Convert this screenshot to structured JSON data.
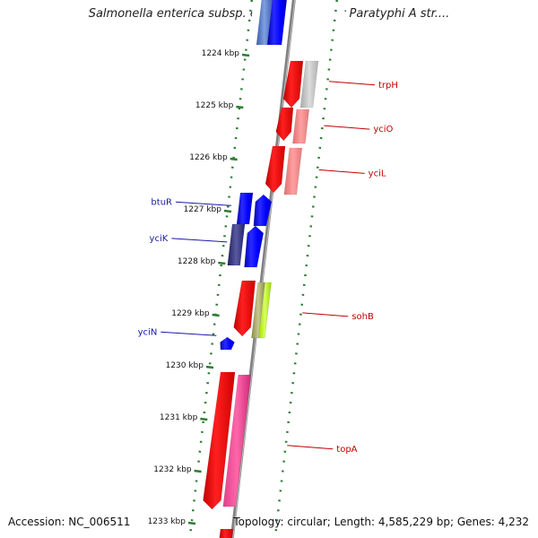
{
  "title": "Salmonella enterica subsp. enterica serovar Paratyphi A str....",
  "accession": "Accession: NC_006511",
  "topology": "Topology: circular; Length: 4,585,229 bp; Genes: 4,232",
  "colors": {
    "forward_gene": "#0000ff",
    "reverse_gene": "#ff0000",
    "backbone": "#808080",
    "tick": "#2e7d32",
    "forward_label": "#1a1aa6",
    "reverse_label": "#c00000"
  },
  "ruler": {
    "ticks": [
      "1224 kbp",
      "1225 kbp",
      "1226 kbp",
      "1227 kbp",
      "1228 kbp",
      "1229 kbp",
      "1230 kbp",
      "1231 kbp",
      "1232 kbp",
      "1233 kbp"
    ]
  },
  "forward_labels": [
    {
      "name": "btuR",
      "kbp": 1226.85
    },
    {
      "name": "yciK",
      "kbp": 1227.55
    },
    {
      "name": "yciN",
      "kbp": 1229.35
    }
  ],
  "reverse_labels": [
    {
      "name": "trpH",
      "kbp": 1224.6
    },
    {
      "name": "yciO",
      "kbp": 1225.45
    },
    {
      "name": "yciL",
      "kbp": 1226.3
    },
    {
      "name": "sohB",
      "kbp": 1229.05
    },
    {
      "name": "topA",
      "kbp": 1231.6
    }
  ]
}
